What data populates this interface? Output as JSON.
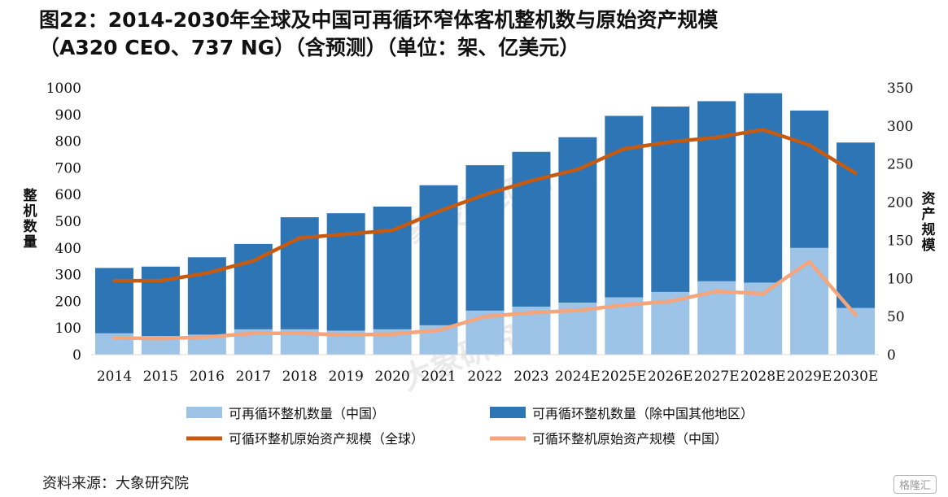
{
  "title": {
    "line1": "图22：2014-2030年全球及中国可再循环窄体客机整机数与原始资产规模",
    "line2": "（A320 CEO、737 NG）（含预测）（单位：架、亿美元）"
  },
  "source": "资料来源：大象研究院",
  "badge": "格隆汇",
  "watermarks": [
    "大象投资顾问",
    "大象研究院"
  ],
  "chart_data": {
    "type": "bar",
    "stacked": true,
    "categories": [
      "2014",
      "2015",
      "2016",
      "2017",
      "2018",
      "2019",
      "2020",
      "2021",
      "2022",
      "2023",
      "2024E",
      "2025E",
      "2026E",
      "2027E",
      "2028E",
      "2029E",
      "2030E"
    ],
    "series": [
      {
        "name": "可再循环整机数量（中国）",
        "type": "bar",
        "axis": "left",
        "color": "#9dc3e6",
        "values": [
          80,
          70,
          75,
          95,
          95,
          90,
          95,
          110,
          165,
          180,
          195,
          215,
          235,
          275,
          270,
          400,
          175
        ]
      },
      {
        "name": "可再循环整机数量（除中国其他地区）",
        "type": "bar",
        "axis": "left",
        "color": "#2e75b6",
        "values": [
          245,
          260,
          290,
          320,
          420,
          440,
          460,
          525,
          545,
          580,
          620,
          680,
          695,
          675,
          710,
          515,
          620
        ]
      },
      {
        "name": "可循环整机原始资产规模（全球）",
        "type": "line",
        "axis": "right",
        "color": "#c55a11",
        "values": [
          97,
          97,
          107,
          123,
          153,
          158,
          163,
          188,
          210,
          228,
          243,
          270,
          279,
          285,
          295,
          275,
          238
        ]
      },
      {
        "name": "可循环整机原始资产规模（中国）",
        "type": "line",
        "axis": "right",
        "color": "#f4a57c",
        "values": [
          22,
          21,
          23,
          28,
          28,
          26,
          27,
          32,
          50,
          55,
          58,
          65,
          70,
          83,
          80,
          122,
          52
        ]
      }
    ],
    "y_left": {
      "label": "整机数量",
      "min": 0,
      "max": 1000,
      "step": 100,
      "ticks": [
        "0",
        "100",
        "200",
        "300",
        "400",
        "500",
        "600",
        "700",
        "800",
        "900",
        "1000"
      ]
    },
    "y_right": {
      "label": "资产规模",
      "min": 0,
      "max": 350,
      "step": 50,
      "ticks": [
        "0",
        "50",
        "100",
        "150",
        "200",
        "250",
        "300",
        "350"
      ]
    },
    "legend_position": "bottom",
    "grid": false
  }
}
